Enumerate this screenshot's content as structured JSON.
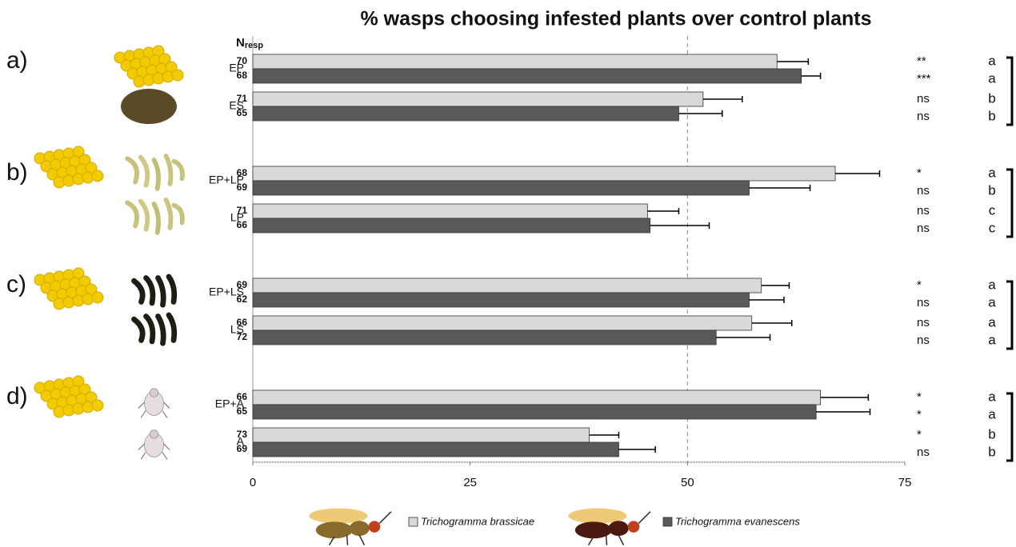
{
  "chart_data": {
    "type": "bar",
    "orientation": "horizontal",
    "title": "% wasps choosing infested plants over control plants",
    "n_header": {
      "main": "N",
      "sub": "resp"
    },
    "panels": [
      "a)",
      "b)",
      "c)",
      "d)"
    ],
    "categories": [
      "EP",
      "ES",
      "EP+LP",
      "LP",
      "EP+LS",
      "LS",
      "EP+A",
      "A"
    ],
    "series": [
      {
        "name": "Trichogramma brassicae",
        "color": "#d9d9d9",
        "values": [
          60.3,
          51.8,
          67.0,
          45.4,
          58.5,
          57.4,
          65.3,
          38.7
        ],
        "errors": [
          3.6,
          4.5,
          5.1,
          3.6,
          3.2,
          4.6,
          5.5,
          3.4
        ],
        "n": [
          70,
          71,
          68,
          71,
          69,
          66,
          66,
          73
        ],
        "significance": [
          "**",
          "ns",
          "*",
          "ns",
          "*",
          "ns",
          "*",
          "*"
        ],
        "letters": [
          "a",
          "b",
          "a",
          "c",
          "a",
          "a",
          "a",
          "b"
        ]
      },
      {
        "name": "Trichogramma evanescens",
        "color": "#595959",
        "values": [
          63.1,
          49.0,
          57.1,
          45.7,
          57.1,
          53.3,
          64.8,
          42.1
        ],
        "errors": [
          2.2,
          5.0,
          7.0,
          6.8,
          4.0,
          6.2,
          6.2,
          4.2
        ],
        "n": [
          68,
          65,
          69,
          66,
          62,
          72,
          65,
          69
        ],
        "significance": [
          "***",
          "ns",
          "ns",
          "ns",
          "ns",
          "ns",
          "*",
          "ns"
        ],
        "letters": [
          "a",
          "b",
          "b",
          "c",
          "a",
          "a",
          "a",
          "b"
        ]
      }
    ],
    "reference_line": 50,
    "xlim": [
      0,
      75
    ],
    "xticks": [
      0,
      25,
      50,
      75
    ]
  }
}
